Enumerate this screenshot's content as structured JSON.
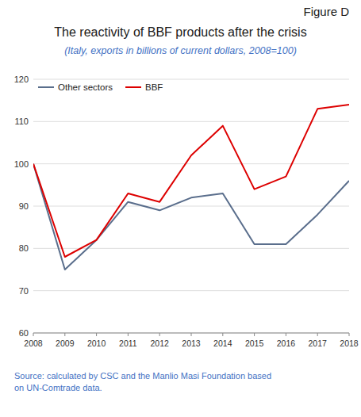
{
  "chart_data": {
    "type": "line",
    "title": "The reactivity of BBF products after the crisis",
    "subtitle": "(Italy, exports in billions of current dollars, 2008=100)",
    "figure_label": "Figure D",
    "source": "Source: calculated by CSC and the Manlio Masi Foundation based\non UN-Comtrade data.",
    "x": [
      2008,
      2009,
      2010,
      2011,
      2012,
      2013,
      2014,
      2015,
      2016,
      2017,
      2018
    ],
    "xlim": [
      2008,
      2018
    ],
    "xticks": [
      2008,
      2009,
      2010,
      2011,
      2012,
      2013,
      2014,
      2015,
      2016,
      2017,
      2018
    ],
    "ylim": [
      60,
      120
    ],
    "yticks": [
      60,
      70,
      80,
      90,
      100,
      110,
      120
    ],
    "grid": true,
    "legend": "upper left",
    "series": [
      {
        "name": "Other sectors",
        "color": "#5a6e8c",
        "values": [
          100,
          75,
          82,
          91,
          89,
          92,
          93,
          81,
          81,
          88,
          96
        ]
      },
      {
        "name": "BBF",
        "color": "#dd0000",
        "values": [
          100,
          78,
          82,
          93,
          91,
          102,
          109,
          94,
          97,
          113,
          114
        ]
      }
    ]
  }
}
